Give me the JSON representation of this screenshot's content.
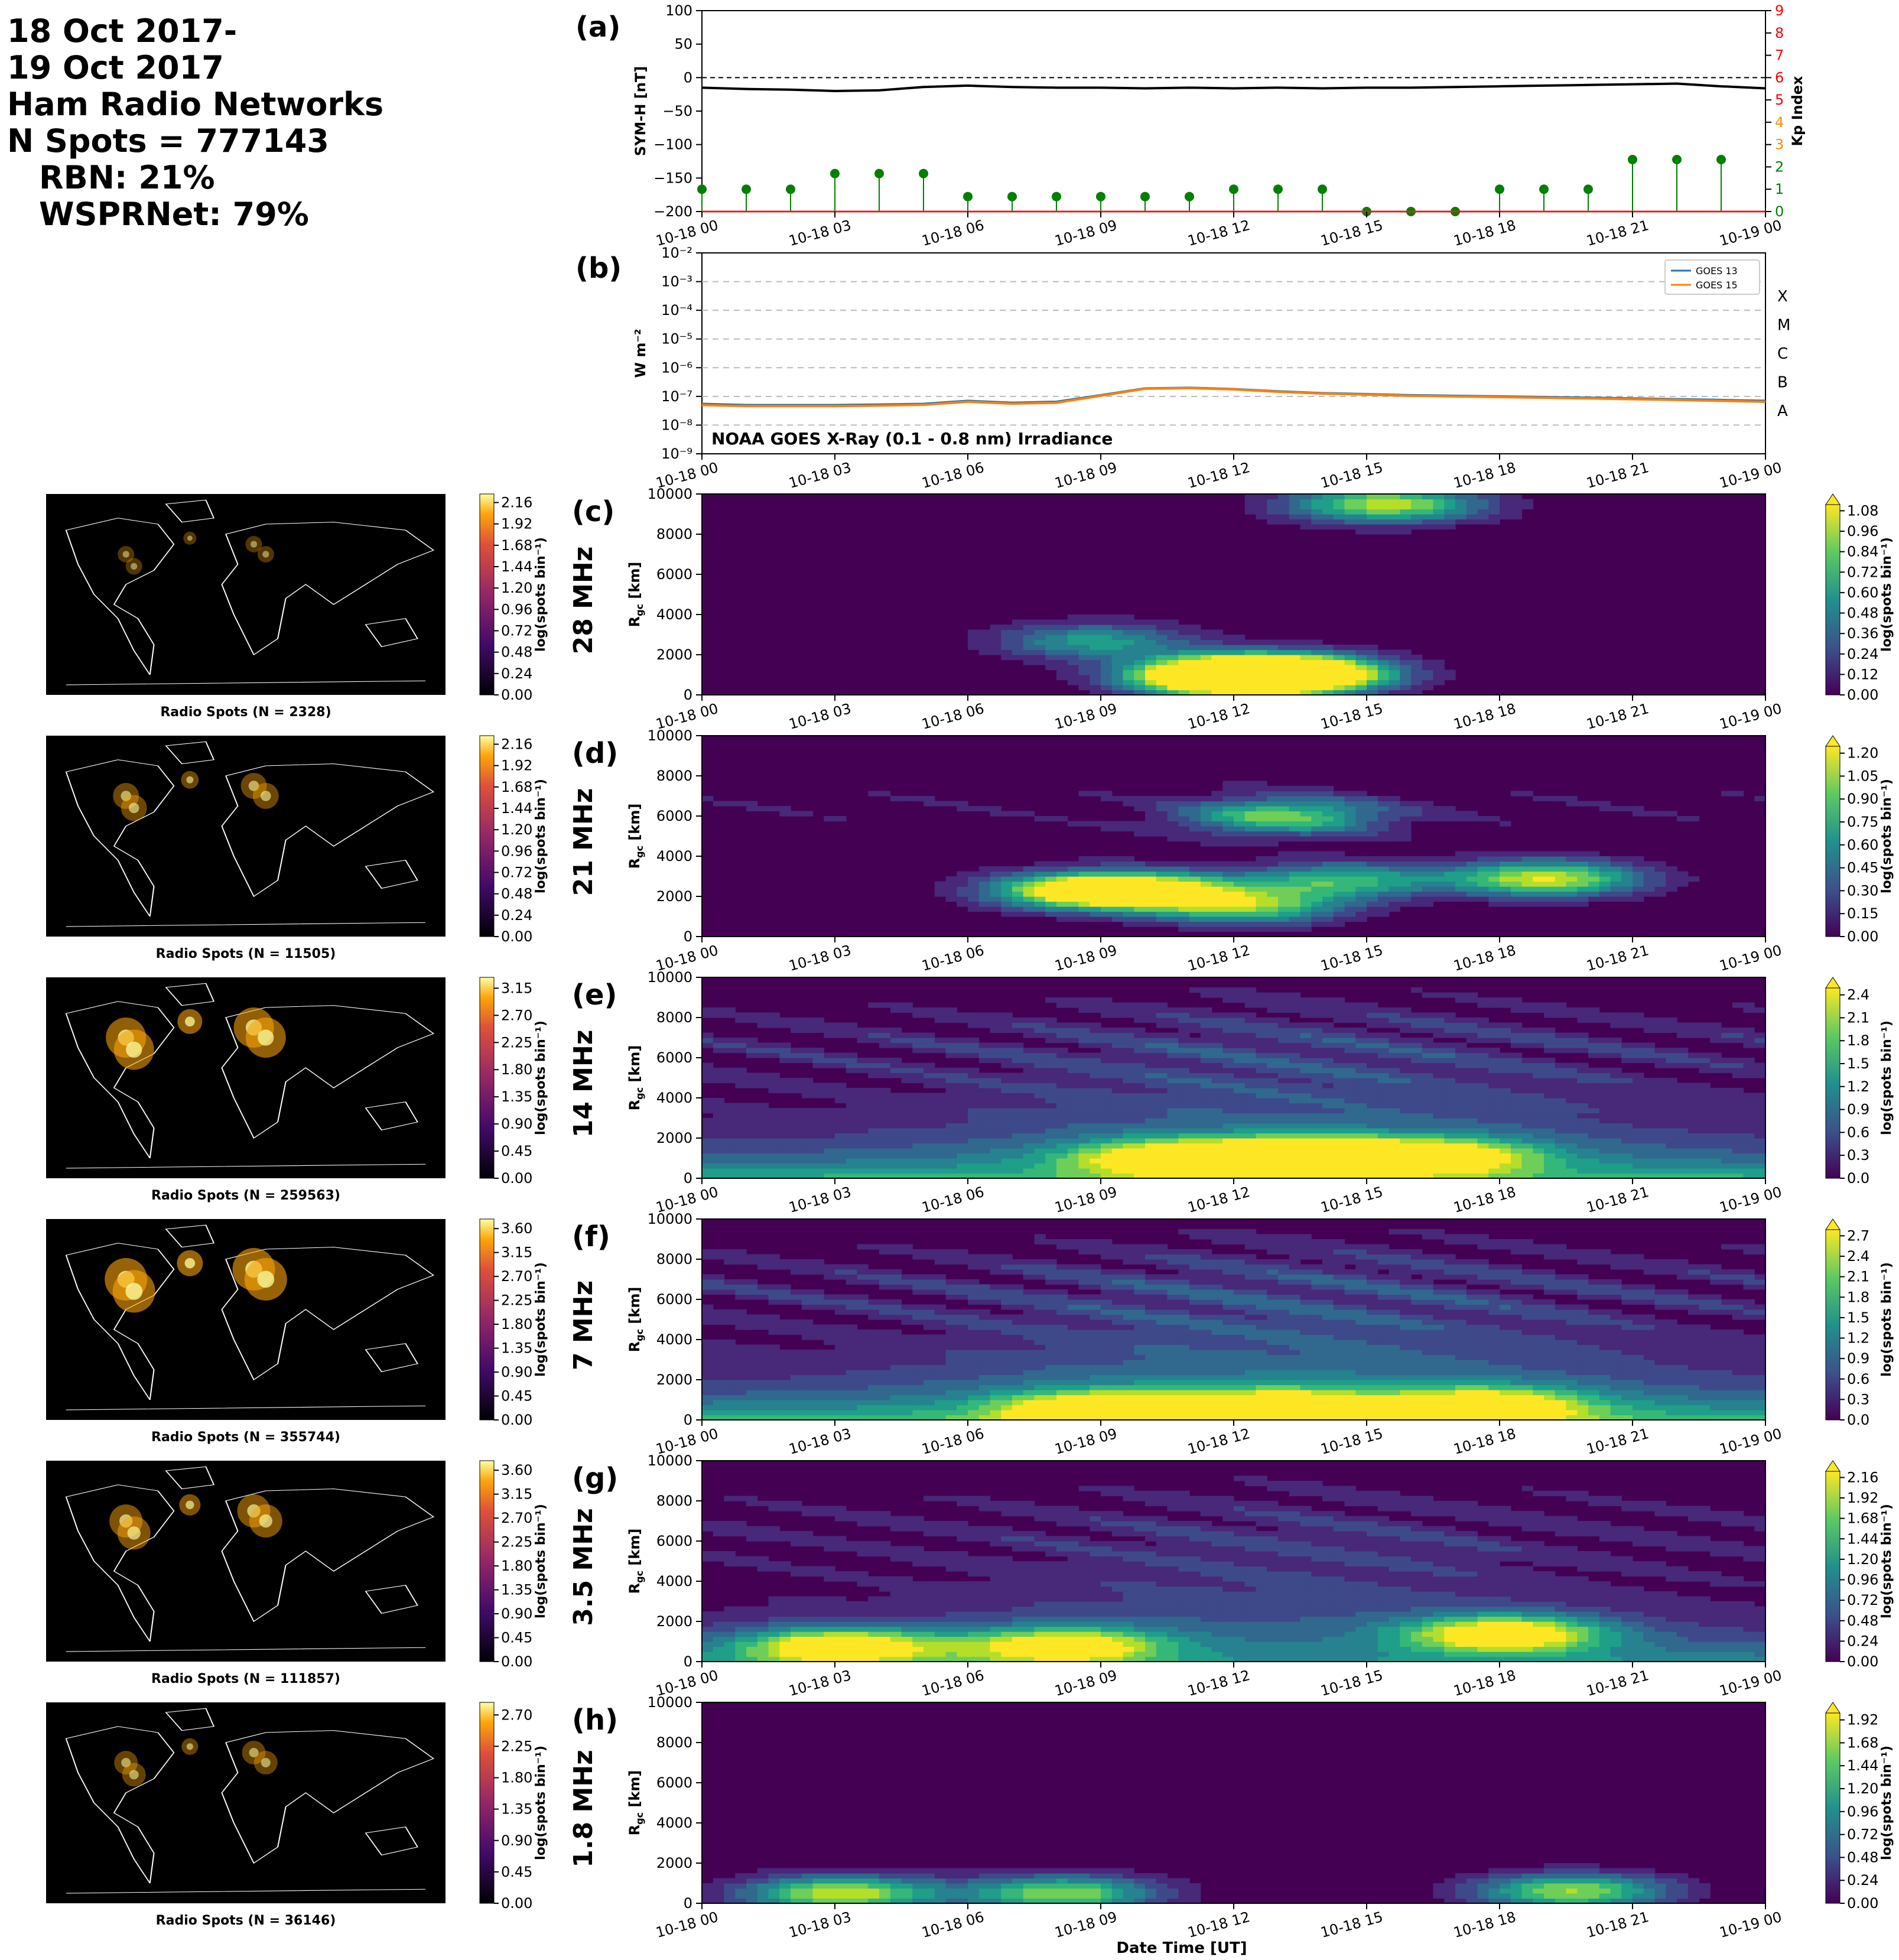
{
  "header": {
    "lines": [
      "18 Oct 2017-",
      "19 Oct 2017",
      "Ham Radio Networks",
      "N Spots = 777143",
      "RBN: 21%",
      "WSPRNet: 79%"
    ]
  },
  "time_ticks": [
    "10-18 00",
    "10-18 03",
    "10-18 06",
    "10-18 09",
    "10-18 12",
    "10-18 15",
    "10-18 18",
    "10-18 21",
    "10-19 00"
  ],
  "colors": {
    "symh": "#000000",
    "kp_low": "#008000",
    "kp_right_axis": "#ff0000",
    "goes13": "#1f77b4",
    "goes15": "#ff7f0e"
  },
  "chart_data": [
    {
      "panel": "(a)",
      "type": "line",
      "ylabel": "SYM-H [nT]",
      "ylim": [
        -200,
        100
      ],
      "yticks": [
        "100",
        "50",
        "0",
        "−50",
        "−100",
        "−150",
        "−200"
      ],
      "y2label": "Kp Index",
      "y2lim": [
        0,
        9
      ],
      "y2ticks": [
        "0",
        "1",
        "2",
        "3",
        "4",
        "5",
        "6",
        "7",
        "8",
        "9"
      ],
      "x": [
        "10-18 00",
        "10-18 01",
        "10-18 02",
        "10-18 03",
        "10-18 04",
        "10-18 05",
        "10-18 06",
        "10-18 07",
        "10-18 08",
        "10-18 09",
        "10-18 10",
        "10-18 11",
        "10-18 12",
        "10-18 13",
        "10-18 14",
        "10-18 15",
        "10-18 16",
        "10-18 17",
        "10-18 18",
        "10-18 19",
        "10-18 20",
        "10-18 21",
        "10-18 22",
        "10-18 23",
        "10-19 00"
      ],
      "symh": [
        -15,
        -17,
        -18,
        -20,
        -19,
        -14,
        -12,
        -14,
        -15,
        -15,
        -16,
        -15,
        -16,
        -15,
        -16,
        -15,
        -15,
        -14,
        -13,
        -12,
        -11,
        -10,
        -9,
        -13,
        -16
      ],
      "kp_times": [
        0,
        1,
        2,
        3,
        4,
        5,
        6,
        7,
        8,
        9,
        10,
        11,
        12,
        13,
        14,
        15,
        16,
        17,
        18,
        19,
        20,
        21,
        22,
        23
      ],
      "kp": [
        1,
        1,
        1,
        1.7,
        1.7,
        1.7,
        0.67,
        0.67,
        0.67,
        0.67,
        0.67,
        0.67,
        1,
        1,
        1,
        0,
        0,
        0,
        1,
        1,
        1,
        2.33,
        2.33,
        2.33
      ]
    },
    {
      "panel": "(b)",
      "type": "line",
      "scale": "log",
      "ylabel": "W m⁻²",
      "ylim": [
        1e-09,
        0.01
      ],
      "yticks": [
        "10⁻⁹",
        "10⁻⁸",
        "10⁻⁷",
        "10⁻⁶",
        "10⁻⁵",
        "10⁻⁴",
        "10⁻³",
        "10⁻²"
      ],
      "flare_classes": [
        "A",
        "B",
        "C",
        "M",
        "X"
      ],
      "annotation": "NOAA GOES X-Ray (0.1 - 0.8 nm) Irradiance",
      "legend": "top-right",
      "x": [
        0,
        1,
        2,
        3,
        4,
        5,
        6,
        7,
        8,
        9,
        10,
        11,
        12,
        13,
        14,
        15,
        16,
        17,
        18,
        19,
        20,
        21,
        22,
        23,
        24
      ],
      "series": [
        {
          "name": "GOES 13",
          "values": [
            5.5e-08,
            5e-08,
            5e-08,
            5e-08,
            5.2e-08,
            5.5e-08,
            7e-08,
            6e-08,
            6.5e-08,
            1.1e-07,
            1.9e-07,
            2e-07,
            1.8e-07,
            1.5e-07,
            1.3e-07,
            1.2e-07,
            1.1e-07,
            1.05e-07,
            1e-07,
            9.5e-08,
            9e-08,
            8.5e-08,
            8e-08,
            7.5e-08,
            7e-08
          ]
        },
        {
          "name": "GOES 15",
          "values": [
            5e-08,
            4.6e-08,
            4.6e-08,
            4.6e-08,
            4.8e-08,
            5.1e-08,
            6.5e-08,
            5.6e-08,
            6e-08,
            1.05e-07,
            1.85e-07,
            1.95e-07,
            1.75e-07,
            1.45e-07,
            1.25e-07,
            1.15e-07,
            1.05e-07,
            1e-07,
            9.5e-08,
            9e-08,
            8.5e-08,
            8e-08,
            7.5e-08,
            7e-08,
            6.5e-08
          ]
        }
      ]
    }
  ],
  "bands": [
    {
      "panel": "(c)",
      "band": "28 MHz",
      "map_label": "Radio Spots (N = 2328)",
      "map_ticks": [
        "0.00",
        "0.24",
        "0.48",
        "0.72",
        "0.96",
        "1.20",
        "1.44",
        "1.68",
        "1.92",
        "2.16"
      ],
      "cb_ticks": [
        "0.00",
        "0.12",
        "0.24",
        "0.36",
        "0.48",
        "0.60",
        "0.72",
        "0.84",
        "0.96",
        "1.08"
      ],
      "activity": 0.15,
      "hotspots": [
        [
          11.8,
          700,
          1.0
        ],
        [
          12.8,
          1200,
          0.9
        ],
        [
          13.4,
          1000,
          0.8
        ],
        [
          15.3,
          9500,
          0.95
        ],
        [
          8.7,
          2700,
          0.6
        ],
        [
          11.3,
          1200,
          0.5
        ]
      ]
    },
    {
      "panel": "(d)",
      "band": "21 MHz",
      "map_label": "Radio Spots (N = 11505)",
      "map_ticks": [
        "0.00",
        "0.24",
        "0.48",
        "0.72",
        "0.96",
        "1.20",
        "1.44",
        "1.68",
        "1.92",
        "2.16"
      ],
      "cb_ticks": [
        "0.00",
        "0.15",
        "0.30",
        "0.45",
        "0.60",
        "0.75",
        "0.90",
        "1.05",
        "1.20"
      ],
      "activity": 0.35,
      "hotspots": [
        [
          9.8,
          2300,
          1.0
        ],
        [
          8.4,
          2300,
          0.9
        ],
        [
          12.2,
          1500,
          0.8
        ],
        [
          18.9,
          2900,
          1.0
        ],
        [
          13.0,
          6000,
          0.8
        ],
        [
          14.3,
          2800,
          0.7
        ]
      ]
    },
    {
      "panel": "(e)",
      "band": "14 MHz",
      "map_label": "Radio Spots (N = 259563)",
      "map_ticks": [
        "0.00",
        "0.45",
        "0.90",
        "1.35",
        "1.80",
        "2.25",
        "2.70",
        "3.15"
      ],
      "cb_ticks": [
        "0.0",
        "0.3",
        "0.6",
        "0.9",
        "1.2",
        "1.5",
        "1.8",
        "2.1",
        "2.4"
      ],
      "activity": 0.65,
      "hotspots": [
        [
          13.5,
          1200,
          1.0
        ],
        [
          10.5,
          1000,
          0.9
        ],
        [
          16.5,
          1100,
          0.85
        ]
      ]
    },
    {
      "panel": "(f)",
      "band": "7 MHz",
      "map_label": "Radio Spots (N = 355744)",
      "map_ticks": [
        "0.00",
        "0.45",
        "0.90",
        "1.35",
        "1.80",
        "2.25",
        "2.70",
        "3.15",
        "3.60"
      ],
      "cb_ticks": [
        "0.0",
        "0.3",
        "0.6",
        "0.9",
        "1.2",
        "1.5",
        "1.8",
        "2.1",
        "2.4",
        "2.7"
      ],
      "activity": 0.7,
      "hotspots": [
        [
          9.0,
          500,
          1.0
        ],
        [
          13.0,
          600,
          0.95
        ],
        [
          17.5,
          700,
          0.9
        ]
      ]
    },
    {
      "panel": "(g)",
      "band": "3.5 MHz",
      "map_label": "Radio Spots (N = 111857)",
      "map_ticks": [
        "0.00",
        "0.45",
        "0.90",
        "1.35",
        "1.80",
        "2.25",
        "2.70",
        "3.15",
        "3.60"
      ],
      "cb_ticks": [
        "0.00",
        "0.24",
        "0.48",
        "0.72",
        "0.96",
        "1.20",
        "1.44",
        "1.68",
        "1.92",
        "2.16"
      ],
      "activity": 0.5,
      "hotspots": [
        [
          3.0,
          800,
          1.0
        ],
        [
          8.0,
          800,
          0.9
        ],
        [
          18.0,
          1400,
          1.0
        ]
      ]
    },
    {
      "panel": "(h)",
      "band": "1.8 MHz",
      "map_label": "Radio Spots (N = 36146)",
      "map_ticks": [
        "0.00",
        "0.45",
        "0.90",
        "1.35",
        "1.80",
        "2.25",
        "2.70"
      ],
      "cb_ticks": [
        "0.00",
        "0.24",
        "0.48",
        "0.72",
        "0.96",
        "1.20",
        "1.44",
        "1.68",
        "1.92"
      ],
      "activity": 0.3,
      "hotspots": [
        [
          3.0,
          500,
          1.0
        ],
        [
          8.0,
          500,
          0.9
        ],
        [
          19.5,
          600,
          0.9
        ]
      ]
    }
  ],
  "rgc_label": "R",
  "rgc_sub": "gc",
  "rgc_unit": " [km]",
  "rgc_ticks": [
    "0",
    "2000",
    "4000",
    "6000",
    "8000",
    "10000"
  ],
  "cb_label": "log(spots bin⁻¹)",
  "xlabel": "Date Time [UT]"
}
